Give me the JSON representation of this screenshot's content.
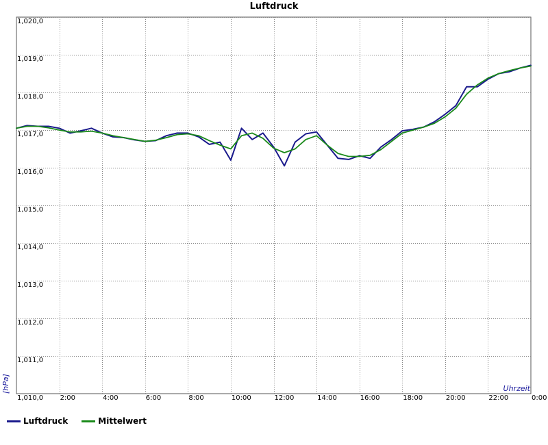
{
  "chart_data": {
    "type": "line",
    "title": "Luftdruck",
    "ylabel": "[hPa]",
    "xlabel": "Uhrzeit",
    "ylim": [
      1010.0,
      1020.0
    ],
    "y_ticks": [
      "1,010,0",
      "1,011,0",
      "1,012,0",
      "1,013,0",
      "1,014,0",
      "1,015,0",
      "1,016,0",
      "1,017,0",
      "1,018,0",
      "1,019,0",
      "1,020,0"
    ],
    "x_ticks": [
      "2:00",
      "4:00",
      "6:00",
      "8:00",
      "10:00",
      "12:00",
      "14:00",
      "16:00",
      "18:00",
      "20:00",
      "22:00",
      "0:00"
    ],
    "xlim_hours": [
      0,
      24
    ],
    "grid": true,
    "legend_position": "bottom-left",
    "series": [
      {
        "name": "Luftdruck",
        "color": "#1a1a8c",
        "x": [
          0,
          0.5,
          1,
          1.5,
          2,
          2.5,
          3,
          3.5,
          4,
          4.5,
          5,
          5.5,
          6,
          6.5,
          7,
          7.5,
          8,
          8.5,
          9,
          9.5,
          10,
          10.5,
          11,
          11.5,
          12,
          12.5,
          13,
          13.5,
          14,
          14.5,
          15,
          15.5,
          16,
          16.5,
          17,
          17.5,
          18,
          18.5,
          19,
          19.5,
          20,
          20.5,
          21,
          21.5,
          22,
          22.5,
          23,
          23.5,
          24
        ],
        "values": [
          1017.05,
          1017.12,
          1017.1,
          1017.1,
          1017.05,
          1016.92,
          1016.98,
          1017.05,
          1016.92,
          1016.82,
          1016.8,
          1016.74,
          1016.7,
          1016.72,
          1016.85,
          1016.92,
          1016.92,
          1016.82,
          1016.62,
          1016.68,
          1016.2,
          1017.05,
          1016.75,
          1016.92,
          1016.55,
          1016.05,
          1016.68,
          1016.9,
          1016.95,
          1016.6,
          1016.25,
          1016.22,
          1016.32,
          1016.25,
          1016.55,
          1016.75,
          1016.98,
          1017.02,
          1017.08,
          1017.22,
          1017.42,
          1017.65,
          1018.15,
          1018.15,
          1018.35,
          1018.5,
          1018.55,
          1018.65,
          1018.72
        ]
      },
      {
        "name": "Mittelwert",
        "color": "#1a8a1a",
        "x": [
          0,
          0.5,
          1,
          1.5,
          2,
          2.5,
          3,
          3.5,
          4,
          4.5,
          5,
          5.5,
          6,
          6.5,
          7,
          7.5,
          8,
          8.5,
          9,
          9.5,
          10,
          10.5,
          11,
          11.5,
          12,
          12.5,
          13,
          13.5,
          14,
          14.5,
          15,
          15.5,
          16,
          16.5,
          17,
          17.5,
          18,
          18.5,
          19,
          19.5,
          20,
          20.5,
          21,
          21.5,
          22,
          22.5,
          23,
          23.5,
          24
        ],
        "values": [
          1017.05,
          1017.1,
          1017.1,
          1017.06,
          1017.0,
          1016.95,
          1016.95,
          1016.97,
          1016.92,
          1016.85,
          1016.8,
          1016.75,
          1016.7,
          1016.73,
          1016.8,
          1016.88,
          1016.9,
          1016.85,
          1016.72,
          1016.6,
          1016.5,
          1016.85,
          1016.92,
          1016.78,
          1016.52,
          1016.4,
          1016.5,
          1016.75,
          1016.85,
          1016.6,
          1016.38,
          1016.3,
          1016.3,
          1016.33,
          1016.48,
          1016.7,
          1016.92,
          1017.0,
          1017.08,
          1017.18,
          1017.35,
          1017.58,
          1017.95,
          1018.2,
          1018.38,
          1018.5,
          1018.58,
          1018.65,
          1018.7
        ]
      }
    ]
  }
}
